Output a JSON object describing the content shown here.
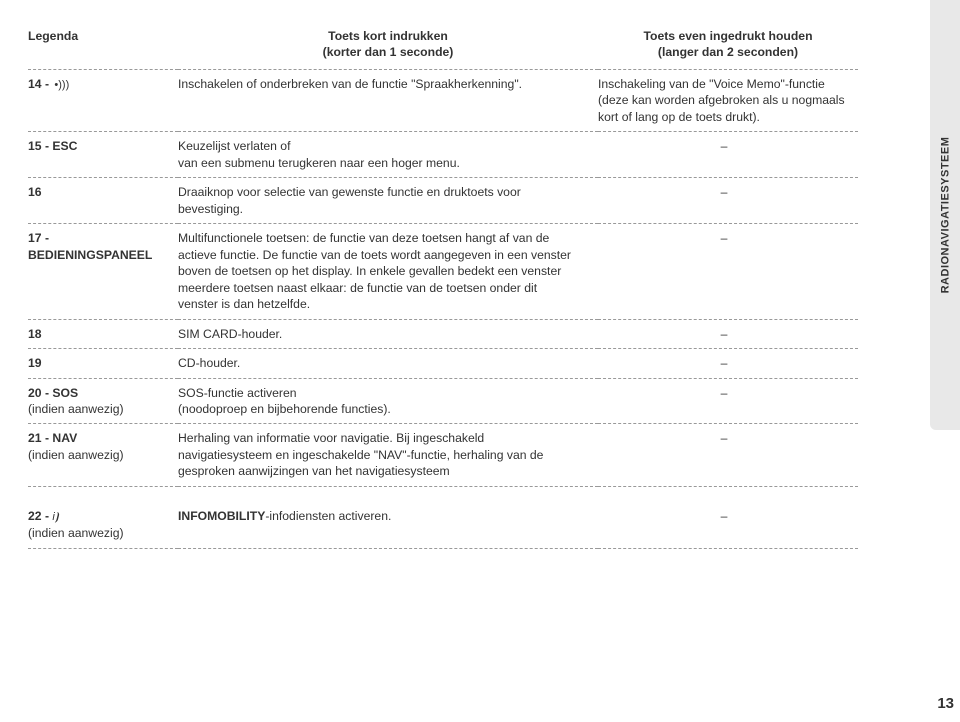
{
  "header": {
    "legend": "Legenda",
    "col2_line1": "Toets kort indrukken",
    "col2_line2": "(korter dan 1 seconde)",
    "col3_line1": "Toets even ingedrukt houden",
    "col3_line2": "(langer dan 2 seconden)"
  },
  "rows": [
    {
      "key": "14 - ",
      "key_icon": "speaker",
      "short": "Inschakelen of onderbreken van de functie \"Spraakherkenning\".",
      "long": "Inschakeling van de \"Voice Memo\"-functie (deze kan worden afgebroken als u nogmaals kort of lang op de toets drukt)."
    },
    {
      "key": "15 - ESC",
      "short": "Keuzelijst verlaten of\nvan een submenu terugkeren naar een hoger menu.",
      "long": "–"
    },
    {
      "key": "16",
      "short": "Draaiknop voor selectie van gewenste functie en druktoets voor bevestiging.",
      "long": "–"
    },
    {
      "key": "17 -\nBEDIENINGSPANEEL",
      "short": "Multifunctionele toetsen: de functie van deze toetsen hangt af van de actieve functie. De functie van de toets wordt aangegeven in een venster boven de toetsen op het display. In enkele gevallen bedekt een venster meerdere toetsen naast elkaar: de functie van de toetsen onder dit venster is dan hetzelfde.",
      "long": "–"
    },
    {
      "key": "18",
      "short": "SIM CARD-houder.",
      "long": "–"
    },
    {
      "key": "19",
      "short": "CD-houder.",
      "long": "–"
    },
    {
      "key": "20 - SOS",
      "key_sub": "(indien aanwezig)",
      "short": "SOS-functie activeren\n(noodoproep en bijbehorende functies).",
      "long": "–"
    },
    {
      "key": "21 - NAV",
      "key_sub": "(indien aanwezig)",
      "short": "Herhaling van informatie voor navigatie. Bij ingeschakeld navigatiesysteem en ingeschakelde \"NAV\"-functie, herhaling van de gesproken aanwijzingen van het navigatiesysteem",
      "long": "–"
    },
    {
      "key": "22 - ",
      "key_icon": "info",
      "key_sub": "(indien aanwezig)",
      "short_bold": "INFOMOBILITY",
      "short_rest": "-infodiensten activeren.",
      "long": "–"
    }
  ],
  "sidetab": "RADIONAVIGATIESYSTEEM",
  "pagenum": "13"
}
